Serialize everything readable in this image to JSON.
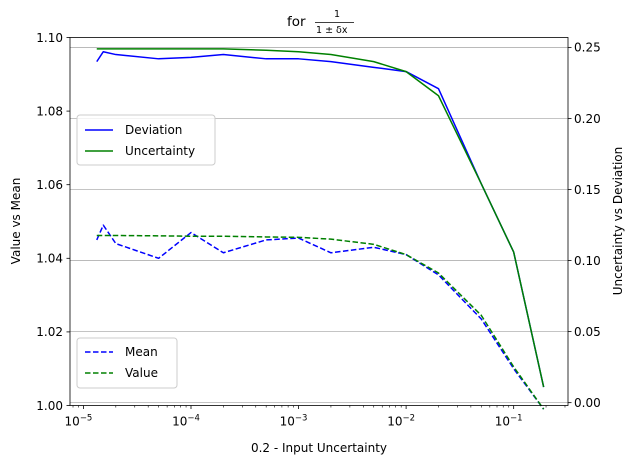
{
  "chart_data": {
    "type": "line",
    "title": "for 1/(1 ± δx)",
    "title_parts": {
      "prefix": "for",
      "numerator": "1",
      "denominator": "1 ± δx"
    },
    "xlabel": "0.2 - Input Uncertainty",
    "ylabel_left": "Value vs Mean",
    "ylabel_right": "Uncertainty vs Deviation",
    "xscale": "log",
    "xlim": [
      7.5e-06,
      0.32
    ],
    "ylim_left": [
      1.0,
      1.1
    ],
    "ylim_right": [
      -0.002,
      0.257
    ],
    "grid": "horizontal, right axis",
    "x_ticks": [
      {
        "value": 1e-05,
        "base": "10",
        "exp": "−5"
      },
      {
        "value": 0.0001,
        "base": "10",
        "exp": "−4"
      },
      {
        "value": 0.001,
        "base": "10",
        "exp": "−3"
      },
      {
        "value": 0.01,
        "base": "10",
        "exp": "−2"
      },
      {
        "value": 0.1,
        "base": "10",
        "exp": "−1"
      }
    ],
    "y_ticks_left": [
      "1.00",
      "1.02",
      "1.04",
      "1.06",
      "1.08",
      "1.10"
    ],
    "y_ticks_right": [
      "0.00",
      "0.05",
      "0.10",
      "0.15",
      "0.20",
      "0.25"
    ],
    "x": [
      1.33e-05,
      1.53e-05,
      2e-05,
      5e-05,
      0.0001,
      0.0002,
      0.0005,
      0.001,
      0.002,
      0.005,
      0.01,
      0.02,
      0.05,
      0.1,
      0.19
    ],
    "series": [
      {
        "name": "Deviation",
        "axis": "right",
        "color": "#0000ff",
        "dash": "solid",
        "values": [
          0.24,
          0.247,
          0.245,
          0.242,
          0.243,
          0.245,
          0.242,
          0.242,
          0.24,
          0.236,
          0.233,
          0.221,
          0.154,
          0.106,
          0.011
        ]
      },
      {
        "name": "Uncertainty",
        "axis": "right",
        "color": "#008000",
        "dash": "solid",
        "values": [
          0.249,
          0.249,
          0.249,
          0.249,
          0.249,
          0.249,
          0.248,
          0.247,
          0.245,
          0.24,
          0.233,
          0.216,
          0.154,
          0.106,
          0.011
        ]
      },
      {
        "name": "Mean",
        "axis": "left",
        "color": "#0000ff",
        "dash": "dashed",
        "values": [
          1.045,
          1.049,
          1.044,
          1.04,
          1.047,
          1.0415,
          1.045,
          1.0455,
          1.0415,
          1.043,
          1.041,
          1.0355,
          1.0235,
          1.01,
          0.999
        ]
      },
      {
        "name": "Value",
        "axis": "left",
        "color": "#008000",
        "dash": "dashed",
        "values": [
          1.0462,
          1.0462,
          1.0462,
          1.0461,
          1.046,
          1.046,
          1.0458,
          1.0457,
          1.0452,
          1.0438,
          1.041,
          1.036,
          1.0245,
          1.0105,
          0.999
        ]
      }
    ],
    "legends": [
      {
        "placement": "center-left",
        "entries": [
          "Deviation",
          "Uncertainty"
        ]
      },
      {
        "placement": "lower-left",
        "entries": [
          "Mean",
          "Value"
        ]
      }
    ]
  }
}
